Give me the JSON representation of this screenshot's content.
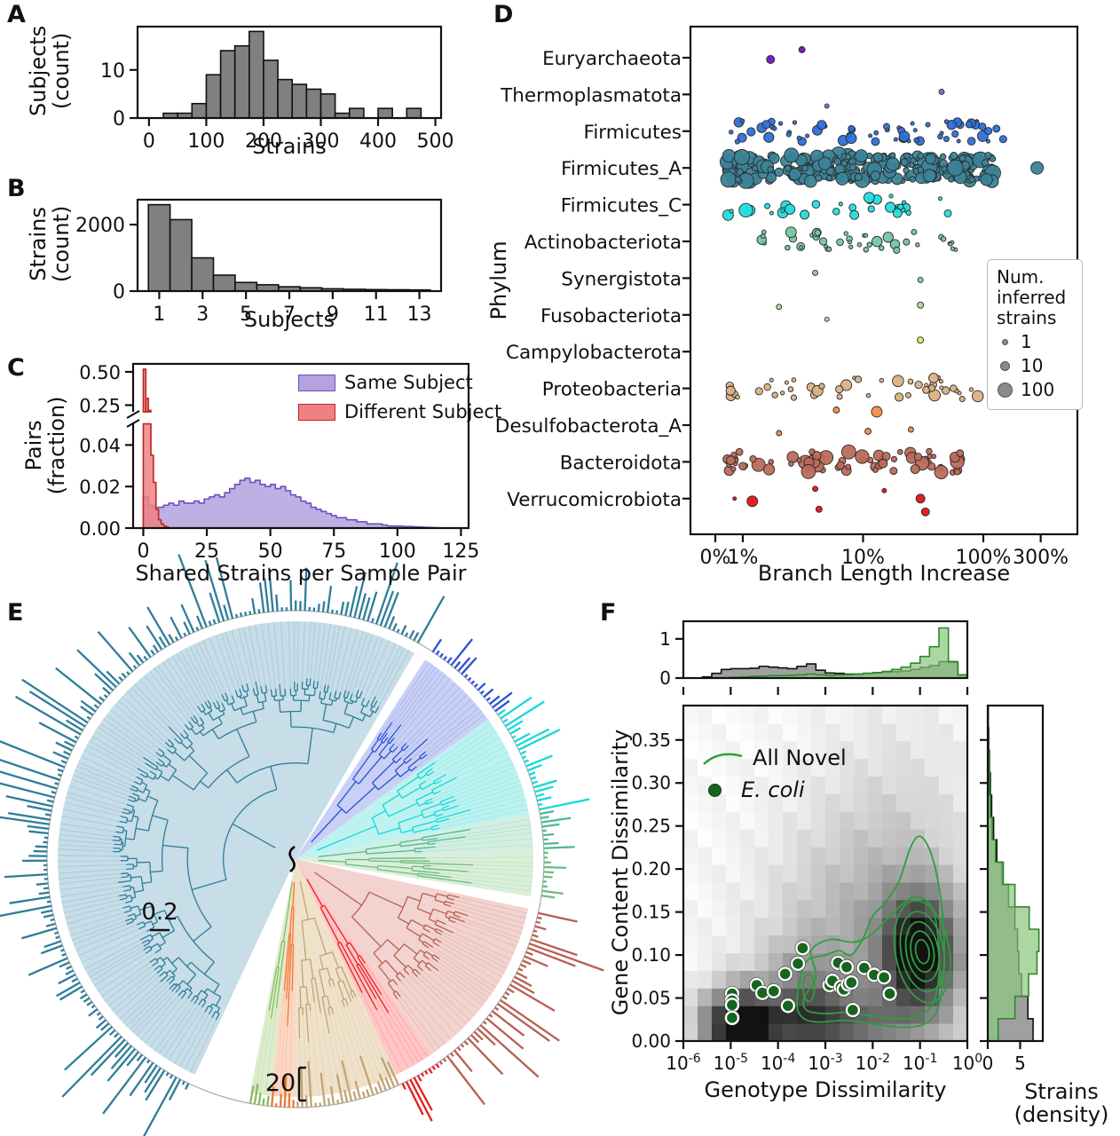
{
  "labels": {
    "panel_a": "A",
    "panel_b": "B",
    "panel_c": "C",
    "panel_d": "D",
    "panel_e": "E",
    "panel_f": "F",
    "a_xlabel": "Strains",
    "a_ylabel": "Subjects\n(count)",
    "b_xlabel": "Subjects",
    "b_ylabel": "Strains\n(count)",
    "c_xlabel": "Shared Strains per Sample Pair",
    "c_ylabel": "Pairs\n(fraction)",
    "d_xlabel": "Branch Length Increase",
    "d_ylabel": "Phylum",
    "f_xlabel": "Genotype Dissimilarity",
    "f_ylabel": "Gene Content Dissimilarity",
    "f_right_label": "Strains\n(density)"
  },
  "legends": {
    "c": [
      {
        "label": "Same Subject",
        "color": "#b3a2de",
        "edge": "#8a76cc"
      },
      {
        "label": "Different Subject",
        "color": "#ee8282",
        "edge": "#cc3333"
      }
    ],
    "d": {
      "title": "Num.\ninferred\nstrains",
      "entries": [
        {
          "label": "1"
        },
        {
          "label": "10"
        },
        {
          "label": "100"
        }
      ]
    },
    "f": [
      {
        "label": "All Novel"
      },
      {
        "label": "E. coli"
      }
    ]
  },
  "chart_data": [
    {
      "panel": "A",
      "type": "bar",
      "xlabel": "Strains",
      "ylabel": "Subjects (count)",
      "bin_start": 25,
      "bin_width": 25,
      "values": [
        1,
        1,
        3,
        9,
        14,
        15,
        18,
        12,
        8,
        7,
        6,
        5,
        1,
        2,
        0,
        2,
        0,
        2
      ],
      "xticks": [
        0,
        100,
        200,
        300,
        400,
        500
      ],
      "yticks": [
        0,
        10
      ],
      "xlim": [
        -20,
        510
      ],
      "ylim": [
        0,
        19
      ],
      "bar_color": "#808080",
      "edge_color": "#111111"
    },
    {
      "panel": "B",
      "type": "bar",
      "xlabel": "Subjects",
      "ylabel": "Strains (count)",
      "bin_start": 0.5,
      "bin_width": 1,
      "values": [
        2600,
        2150,
        1000,
        480,
        260,
        190,
        130,
        100,
        70,
        55,
        45,
        40,
        35
      ],
      "xticks": [
        1,
        3,
        5,
        7,
        9,
        11,
        13
      ],
      "yticks": [
        0,
        2000
      ],
      "xlim": [
        0,
        14
      ],
      "ylim": [
        0,
        2750
      ],
      "bar_color": "#808080",
      "edge_color": "#111111"
    },
    {
      "panel": "C",
      "type": "histogram-overlay",
      "xlabel": "Shared Strains per Sample Pair",
      "ylabel": "Pairs (fraction)",
      "xticks": [
        0,
        25,
        50,
        75,
        100,
        125
      ],
      "xlim": [
        -4,
        128
      ],
      "broken_y": {
        "top_lim": [
          0.2,
          0.56
        ],
        "bottom_lim": [
          0,
          0.05
        ]
      },
      "yticks_top": [
        "0.25",
        "0.50"
      ],
      "yticks_top_v": [
        0.25,
        0.5
      ],
      "yticks_bottom": [
        "0.00",
        "0.02",
        "0.04"
      ],
      "yticks_bottom_v": [
        0,
        0.02,
        0.04
      ],
      "series": [
        {
          "name": "Same Subject",
          "color": "#b3a2de",
          "edge": "#6a4fc0",
          "bin_start": 0,
          "bin_width": 2,
          "values": [
            0.015,
            0.011,
            0.01,
            0.01,
            0.011,
            0.012,
            0.011,
            0.013,
            0.012,
            0.012,
            0.013,
            0.012,
            0.014,
            0.015,
            0.016,
            0.015,
            0.017,
            0.019,
            0.021,
            0.023,
            0.024,
            0.022,
            0.023,
            0.021,
            0.02,
            0.021,
            0.019,
            0.02,
            0.018,
            0.016,
            0.015,
            0.013,
            0.012,
            0.01,
            0.009,
            0.008,
            0.007,
            0.006,
            0.005,
            0.005,
            0.004,
            0.004,
            0.003,
            0.003,
            0.002,
            0.002,
            0.002,
            0.0015,
            0.001,
            0.001,
            0.001,
            0.0008,
            0.0008,
            0.0006,
            0.0005,
            0.0004,
            0.0003,
            0.0002,
            0.0001,
            0.0001
          ]
        },
        {
          "name": "Different Subject",
          "color": "#ee8282",
          "edge": "#c42222",
          "bin_start": 0,
          "bin_width": 1,
          "values": [
            0.52,
            0.3,
            0.21,
            0.035,
            0.022,
            0.009,
            0.004,
            0.002,
            0.001,
            0.0005
          ]
        }
      ]
    },
    {
      "panel": "D",
      "type": "scatter",
      "xlabel": "Branch Length Increase",
      "ylabel": "Phylum",
      "xticks": [
        "0%",
        "1%",
        "10%",
        "100%",
        "300%"
      ],
      "legend_title": "Num. inferred strains",
      "legend_sizes": [
        1,
        10,
        100
      ],
      "rows": [
        {
          "label": "Euryarchaeota",
          "color": "#6d12c4",
          "points": [
            {
              "x": 1.7,
              "r": 4.5,
              "dy": 2
            },
            {
              "x": 3.1,
              "r": 3.5,
              "dy": -9
            }
          ]
        },
        {
          "label": "Thermoplasmatota",
          "color": "#8b5fd6",
          "points": [
            {
              "x": 5,
              "r": 2.5,
              "dy": 13
            },
            {
              "x": 45,
              "r": 3,
              "dy": -3
            }
          ]
        },
        {
          "label": "Firmicutes",
          "color": "#2e6fd8",
          "count": 65,
          "lo": 0.5,
          "hi": 150,
          "rmin": 2,
          "rmax": 6
        },
        {
          "label": "Firmicutes_A",
          "color": "#3b8398",
          "count": 270,
          "lo": 0.4,
          "hi": 120,
          "rmin": 3,
          "rmax": 9,
          "points": [
            {
              "x": 280,
              "r": 7,
              "dy": 0
            }
          ]
        },
        {
          "label": "Firmicutes_C",
          "color": "#21dede",
          "count": 32,
          "lo": 0.4,
          "hi": 60,
          "rmin": 2,
          "rmax": 8
        },
        {
          "label": "Actinobacteriota",
          "color": "#74c6a0",
          "count": 42,
          "lo": 1,
          "hi": 60,
          "rmin": 2,
          "rmax": 6
        },
        {
          "label": "Synergistota",
          "color": "#8ed08e",
          "points": [
            {
              "x": 4,
              "r": 3,
              "dy": -6
            },
            {
              "x": 30,
              "r": 3,
              "dy": 2
            }
          ]
        },
        {
          "label": "Fusobacteriota",
          "color": "#a8da9a",
          "points": [
            {
              "x": 2,
              "r": 3,
              "dy": -9
            },
            {
              "x": 5,
              "r": 2.5,
              "dy": 5
            },
            {
              "x": 30,
              "r": 3.5,
              "dy": -11
            }
          ]
        },
        {
          "label": "Campylobacterota",
          "color": "#e8e84e",
          "points": [
            {
              "x": 30,
              "r": 3.5,
              "dy": -13
            }
          ]
        },
        {
          "label": "Proteobacteria",
          "color": "#dcb184",
          "count": 48,
          "lo": 0.5,
          "hi": 90,
          "rmin": 2,
          "rmax": 6.5
        },
        {
          "label": "Desulfobacterota_A",
          "color": "#f28c4a",
          "points": [
            {
              "x": 6,
              "r": 3.5,
              "dy": -17
            },
            {
              "x": 13,
              "r": 6,
              "dy": -15
            },
            {
              "x": 2,
              "r": 3,
              "dy": 9
            },
            {
              "x": 11,
              "r": 3.5,
              "dy": 7
            },
            {
              "x": 25,
              "r": 3,
              "dy": 5
            }
          ]
        },
        {
          "label": "Bacteroidota",
          "color": "#bd6a58",
          "count": 75,
          "lo": 0.4,
          "hi": 80,
          "rmin": 2.5,
          "rmax": 8
        },
        {
          "label": "Verrucomicrobiota",
          "color": "#e21414",
          "points": [
            {
              "x": 0.7,
              "r": 2,
              "dy": 0
            },
            {
              "x": 1.2,
              "r": 6,
              "dy": 3
            },
            {
              "x": 4,
              "r": 3,
              "dy": -11
            },
            {
              "x": 4.3,
              "r": 3.5,
              "dy": 12
            },
            {
              "x": 15,
              "r": 2.5,
              "dy": -9
            },
            {
              "x": 30,
              "r": 5,
              "dy": 0
            },
            {
              "x": 33,
              "r": 4.5,
              "dy": 15
            }
          ]
        }
      ]
    },
    {
      "panel": "E",
      "type": "radial-tree",
      "scale_branch": "0.2",
      "scale_bars": "20",
      "clades": [
        {
          "a0": 205,
          "a1": 390,
          "fill": "#c7dde8",
          "line": "#2e7d99",
          "dir": 1,
          "blen": 92,
          "seed": 11
        },
        {
          "a0": 33,
          "a1": 54,
          "fill": "#c9d0f4",
          "line": "#2b50d8",
          "dir": 1,
          "blen": 45,
          "seed": 21
        },
        {
          "a0": 54,
          "a1": 79,
          "fill": "#bdf2f0",
          "line": "#16d8d8",
          "dir": 1,
          "blen": 70,
          "seed": 31
        },
        {
          "a0": 79,
          "a1": 88,
          "fill": "#d2efe2",
          "line": "#52b694",
          "dir": 1,
          "blen": 45,
          "seed": 41
        },
        {
          "a0": 88,
          "a1": 99,
          "fill": "#d9efd8",
          "line": "#6cbb80",
          "dir": 1,
          "blen": 35,
          "seed": 51
        },
        {
          "a0": 102,
          "a1": 145,
          "fill": "#f2d3cf",
          "line": "#b75f52",
          "dir": 1,
          "blen": 88,
          "seed": 61
        },
        {
          "a0": 145,
          "a1": 155,
          "fill": "#ffc6c6",
          "line": "#e61e1e",
          "dir": 1,
          "blen": 62,
          "seed": 71
        },
        {
          "a0": 155,
          "a1": 180,
          "fill": "#efe2cb",
          "line": "#c2a372",
          "dir": -1,
          "blen": 52,
          "seed": 81
        },
        {
          "a0": 180,
          "a1": 186,
          "fill": "#fbd8c6",
          "line": "#ec7a30",
          "dir": -1,
          "blen": 42,
          "seed": 91
        },
        {
          "a0": 186,
          "a1": 191,
          "fill": "#dcedcd",
          "line": "#8aba62",
          "dir": -1,
          "blen": 20,
          "seed": 101
        }
      ]
    },
    {
      "panel": "F",
      "type": "density-scatter",
      "xlabel": "Genotype Dissimilarity",
      "ylabel": "Gene Content Dissimilarity",
      "right_label": "Strains (density)",
      "xtick_exponents": [
        -6,
        -5,
        -4,
        -3,
        -2,
        -1,
        0
      ],
      "yticks": [
        0,
        0.05,
        0.1,
        0.15,
        0.2,
        0.25,
        0.3,
        0.35
      ],
      "ylim": [
        0,
        0.39
      ],
      "xlim_log": [
        -6,
        0
      ],
      "top_marginal": {
        "yticks": [
          0,
          1
        ],
        "ymax": 1.45,
        "bin_width_dec": 0.2,
        "gray": [
          0,
          0,
          0.03,
          0.12,
          0.22,
          0.24,
          0.24,
          0.25,
          0.3,
          0.28,
          0.26,
          0.24,
          0.3,
          0.36,
          0.2,
          0.13,
          0.12,
          0.1,
          0.1,
          0.12,
          0.13,
          0.15,
          0.16,
          0.18,
          0.22,
          0.27,
          0.32,
          0.42,
          0.4,
          0.08
        ],
        "green": [
          0,
          0,
          0,
          0,
          0.01,
          0.02,
          0.03,
          0.04,
          0.05,
          0.06,
          0.06,
          0.07,
          0.08,
          0.1,
          0.08,
          0.07,
          0.08,
          0.09,
          0.1,
          0.12,
          0.14,
          0.17,
          0.22,
          0.28,
          0.38,
          0.55,
          0.8,
          1.28,
          0.42,
          0.08
        ]
      },
      "right_marginal": {
        "xticks": [
          0,
          5
        ],
        "xmax": 8.5,
        "bin_height": 0.026,
        "gray": [
          7,
          6.2,
          5.2,
          4.8,
          4.6,
          4.2,
          3.2,
          2.2,
          1.4,
          0.9,
          0.6,
          0.4,
          0.25,
          0.15,
          0.08
        ],
        "green": [
          1.6,
          4.2,
          6.3,
          7.6,
          7.9,
          6.4,
          4.2,
          2.4,
          1.2,
          0.7,
          0.4,
          0.25,
          0.15,
          0.08,
          0.03
        ]
      },
      "ecoli_points": [
        [
          -4.97,
          0.055
        ],
        [
          -4.97,
          0.047
        ],
        [
          -4.97,
          0.042
        ],
        [
          -4.97,
          0.027
        ],
        [
          -4.45,
          0.065
        ],
        [
          -4.33,
          0.056
        ],
        [
          -4.09,
          0.058
        ],
        [
          -3.85,
          0.078
        ],
        [
          -3.79,
          0.041
        ],
        [
          -3.58,
          0.09
        ],
        [
          -3.48,
          0.108
        ],
        [
          -2.91,
          0.065
        ],
        [
          -2.85,
          0.07
        ],
        [
          -2.73,
          0.091
        ],
        [
          -2.67,
          0.063
        ],
        [
          -2.61,
          0.06
        ],
        [
          -2.55,
          0.086
        ],
        [
          -2.52,
          0.066
        ],
        [
          -2.45,
          0.068
        ],
        [
          -2.42,
          0.036
        ],
        [
          -2.18,
          0.085
        ],
        [
          -1.97,
          0.077
        ],
        [
          -1.76,
          0.074
        ],
        [
          -1.64,
          0.055
        ]
      ],
      "density_blobs": [
        {
          "lx": -4.85,
          "y": 0.018,
          "a": 1.05,
          "sx": 0.5,
          "sy": 0.03
        },
        {
          "lx": -1.0,
          "y": 0.103,
          "a": 0.95,
          "sx": 0.55,
          "sy": 0.048
        },
        {
          "lx": -2.2,
          "y": 0.1,
          "a": 0.3,
          "sx": 1.5,
          "sy": 0.1
        },
        {
          "lx": -1.5,
          "y": 0.25,
          "a": 0.12,
          "sx": 1.2,
          "sy": 0.1
        },
        {
          "lx": -3.5,
          "y": 0.05,
          "a": 0.35,
          "sx": 0.6,
          "sy": 0.04
        },
        {
          "lx": -3.0,
          "y": 0.02,
          "a": 0.5,
          "sx": 1.3,
          "sy": 0.025
        }
      ],
      "contours": {
        "color": "#2f9e3f",
        "center": [
          -0.95,
          0.104
        ],
        "rings_rx": [
          0.14,
          0.24,
          0.34,
          0.45,
          0.57
        ],
        "rings_ry": [
          0.014,
          0.024,
          0.035,
          0.047,
          0.06
        ],
        "small_loop": [
          -3.35,
          0.062,
          0.12,
          0.016
        ],
        "outer_a": [
          [
            -3.45,
            0.05
          ],
          [
            -3.2,
            0.075
          ],
          [
            -3.3,
            0.105
          ],
          [
            -2.9,
            0.118
          ],
          [
            -2.4,
            0.115
          ],
          [
            -2.0,
            0.125
          ],
          [
            -1.55,
            0.15
          ],
          [
            -1.1,
            0.168
          ],
          [
            -0.75,
            0.155
          ],
          [
            -0.62,
            0.12
          ],
          [
            -0.6,
            0.075
          ],
          [
            -0.75,
            0.042
          ],
          [
            -1.1,
            0.028
          ],
          [
            -1.6,
            0.026
          ],
          [
            -2.1,
            0.03
          ],
          [
            -2.6,
            0.033
          ],
          [
            -3.05,
            0.032
          ],
          [
            -3.4,
            0.036
          ]
        ],
        "outer_b": [
          [
            -3.6,
            0.042
          ],
          [
            -3.5,
            0.08
          ],
          [
            -3.35,
            0.095
          ],
          [
            -3.0,
            0.1
          ],
          [
            -2.7,
            0.105
          ],
          [
            -2.45,
            0.1
          ],
          [
            -2.2,
            0.12
          ],
          [
            -2.0,
            0.145
          ],
          [
            -1.75,
            0.16
          ],
          [
            -1.45,
            0.185
          ],
          [
            -1.2,
            0.225
          ],
          [
            -1.0,
            0.238
          ],
          [
            -0.78,
            0.22
          ],
          [
            -0.6,
            0.18
          ],
          [
            -0.5,
            0.13
          ],
          [
            -0.5,
            0.08
          ],
          [
            -0.62,
            0.038
          ],
          [
            -0.9,
            0.02
          ],
          [
            -1.4,
            0.016
          ],
          [
            -2.0,
            0.02
          ],
          [
            -2.6,
            0.024
          ],
          [
            -3.1,
            0.022
          ],
          [
            -3.45,
            0.026
          ]
        ]
      }
    }
  ]
}
